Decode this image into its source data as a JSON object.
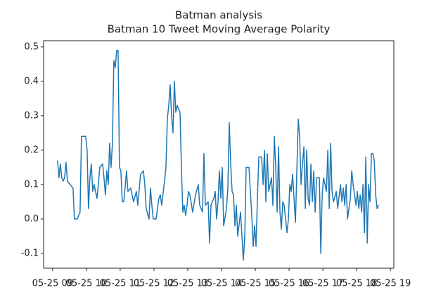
{
  "chart_data": {
    "type": "line",
    "title": "Batman analysis",
    "subtitle": "Batman 10 Tweet Moving Average Polarity",
    "x": [
      548.75,
      551.25,
      553.75,
      556.25,
      558.75,
      561.25,
      563.75,
      566.25,
      571.25,
      576.25,
      578.75,
      583.75,
      588.75,
      591.25,
      596.25,
      598.75,
      601.25,
      603.75,
      606.25,
      608.75,
      611.25,
      613.75,
      618.75,
      621.25,
      623.75,
      628.75,
      631.25,
      633.75,
      636.25,
      638.75,
      641.25,
      643.75,
      646.25,
      648.75,
      651.25,
      653.75,
      656.25,
      658.75,
      661.25,
      663.75,
      666.25,
      668.75,
      671.25,
      673.75,
      678.75,
      681.25,
      683.75,
      688.75,
      691.25,
      696.25,
      701.25,
      703.75,
      706.25,
      711.25,
      713.75,
      716.25,
      718.75,
      723.75,
      728.75,
      731.25,
      733.75,
      738.75,
      741.25,
      743.75,
      746.25,
      748.75,
      751.25,
      753.75,
      756.25,
      758.75,
      761.25,
      766.25,
      768.75,
      771.25,
      773.75,
      776.25,
      778.75,
      781.25,
      783.75,
      788.75,
      793.75,
      798.75,
      801.25,
      806.25,
      808.75,
      811.25,
      816.25,
      818.75,
      821.25,
      826.25,
      828.75,
      831.25,
      833.75,
      836.25,
      838.75,
      841.25,
      843.75,
      848.75,
      851.25,
      853.75,
      856.25,
      858.75,
      861.25,
      863.75,
      866.25,
      868.75,
      873.75,
      878.75,
      881.25,
      883.75,
      888.75,
      893.75,
      896.25,
      898.75,
      901.25,
      903.75,
      906.25,
      911.25,
      913.75,
      916.25,
      918.75,
      921.25,
      923.75,
      928.75,
      931.25,
      933.75,
      936.25,
      938.75,
      941.25,
      943.75,
      946.25,
      948.75,
      951.25,
      956.25,
      958.75,
      961.25,
      963.75,
      966.25,
      971.25,
      976.25,
      978.75,
      981.25,
      983.75,
      986.25,
      988.75,
      991.25,
      993.75,
      996.25,
      998.75,
      1001.25,
      1003.75,
      1006.25,
      1008.75,
      1013.75,
      1016.25,
      1018.75,
      1021.25,
      1026.25,
      1028.75,
      1031.25,
      1033.75,
      1036.25,
      1038.75,
      1043.75,
      1046.25,
      1051.25,
      1053.75,
      1056.25,
      1058.75,
      1061.25,
      1063.75,
      1068.75,
      1071.25,
      1073.75,
      1078.75,
      1081.25,
      1083.75,
      1086.25,
      1088.75,
      1091.25,
      1093.75,
      1096.25,
      1098.75,
      1101.25,
      1103.75,
      1106.25,
      1108.75,
      1111.25,
      1113.75,
      1116.25,
      1118.75
    ],
    "series": [
      {
        "color": "#1f77b4",
        "values": [
          0.17,
          0.12,
          0.16,
          0.12,
          0.11,
          0.12,
          0.165,
          0.11,
          0.1,
          0.09,
          0.0,
          0.0,
          0.02,
          0.24,
          0.24,
          0.24,
          0.2,
          0.03,
          0.12,
          0.16,
          0.08,
          0.1,
          0.06,
          0.1,
          0.15,
          0.16,
          0.12,
          0.07,
          0.14,
          0.1,
          0.22,
          0.15,
          0.22,
          0.46,
          0.44,
          0.49,
          0.49,
          0.15,
          0.14,
          0.05,
          0.05,
          0.09,
          0.14,
          0.08,
          0.09,
          0.07,
          0.05,
          0.08,
          0.04,
          0.13,
          0.14,
          0.1,
          0.03,
          0.0,
          0.09,
          0.04,
          0.0,
          0.0,
          0.06,
          0.07,
          0.04,
          0.11,
          0.15,
          0.29,
          0.33,
          0.39,
          0.3,
          0.25,
          0.4,
          0.31,
          0.33,
          0.31,
          0.15,
          0.02,
          0.04,
          0.01,
          0.04,
          0.08,
          0.07,
          0.02,
          0.07,
          0.1,
          0.04,
          0.02,
          0.19,
          0.04,
          0.05,
          -0.07,
          0.04,
          0.06,
          0.08,
          0.0,
          0.05,
          0.14,
          0.06,
          0.15,
          -0.02,
          0.03,
          0.09,
          0.28,
          0.16,
          0.08,
          0.07,
          -0.02,
          0.04,
          -0.05,
          0.02,
          -0.12,
          -0.05,
          0.15,
          0.15,
          0.01,
          -0.08,
          -0.02,
          -0.08,
          0.06,
          0.18,
          0.18,
          0.1,
          0.2,
          0.05,
          0.19,
          0.08,
          0.12,
          0.04,
          0.24,
          0.15,
          0.02,
          0.21,
          0.02,
          -0.03,
          0.05,
          0.04,
          -0.04,
          0.0,
          0.1,
          0.08,
          0.13,
          -0.01,
          0.29,
          0.24,
          0.1,
          0.16,
          0.21,
          0.03,
          0.2,
          0.06,
          0.04,
          0.16,
          0.05,
          0.14,
          0.02,
          0.12,
          0.12,
          -0.1,
          0.07,
          0.12,
          0.08,
          0.2,
          0.03,
          0.22,
          0.08,
          0.05,
          0.08,
          0.03,
          0.1,
          0.05,
          0.09,
          0.04,
          0.1,
          0.0,
          0.06,
          0.14,
          0.1,
          0.04,
          0.08,
          0.03,
          0.07,
          0.02,
          0.1,
          -0.04,
          0.18,
          -0.07,
          0.1,
          0.05,
          0.19,
          0.19,
          0.17,
          0.07,
          0.03,
          0.04
        ]
      }
    ],
    "xlim": [
      524,
      1146
    ],
    "xticks": [
      {
        "value": 540,
        "label": "05-25 09"
      },
      {
        "value": 600,
        "label": "05-25 10"
      },
      {
        "value": 660,
        "label": "05-25 11"
      },
      {
        "value": 720,
        "label": "05-25 12"
      },
      {
        "value": 780,
        "label": "05-25 13"
      },
      {
        "value": 840,
        "label": "05-25 14"
      },
      {
        "value": 900,
        "label": "05-25 15"
      },
      {
        "value": 960,
        "label": "05-25 16"
      },
      {
        "value": 1020,
        "label": "05-25 17"
      },
      {
        "value": 1080,
        "label": "05-25 18"
      },
      {
        "value": 1140,
        "label": "05-25 19"
      }
    ],
    "ylim": [
      -0.143,
      0.518
    ],
    "yticks": [
      -0.1,
      {
        "value": 0,
        "label": "0.0"
      },
      0.1,
      0.2,
      0.3,
      0.4,
      0.5
    ]
  }
}
